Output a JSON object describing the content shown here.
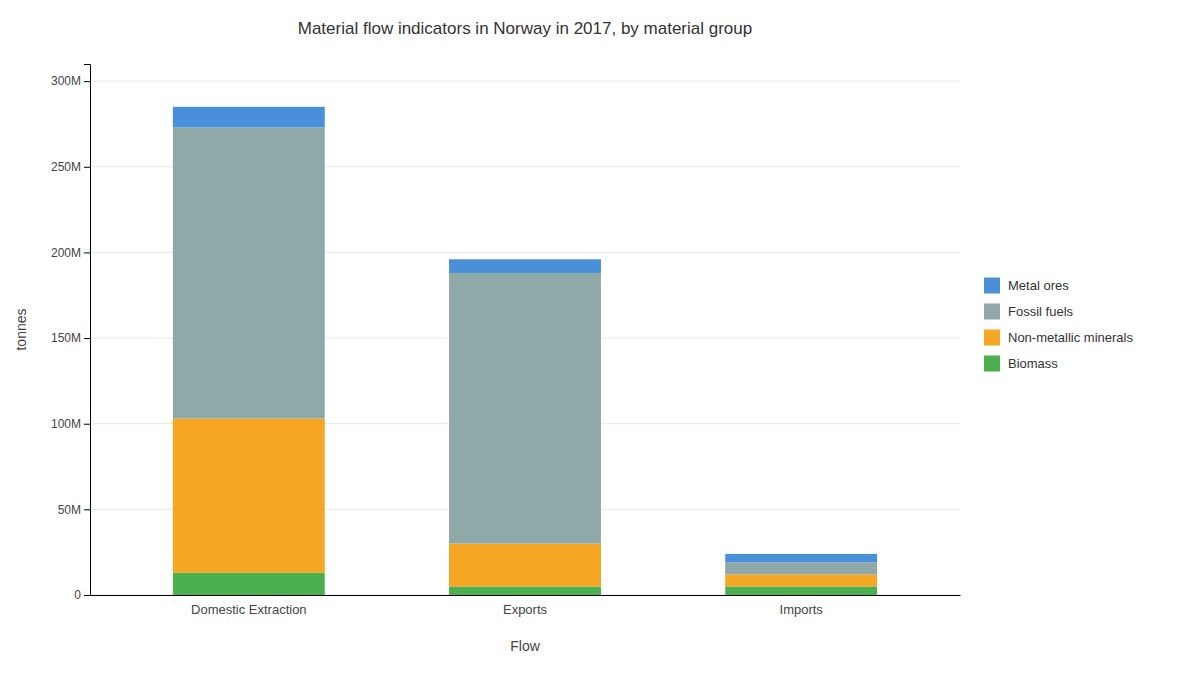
{
  "chart_data": {
    "type": "bar",
    "title": "Material flow indicators in Norway in 2017, by material group",
    "categories": [
      "Domestic Extraction",
      "Exports",
      "Imports"
    ],
    "xlabel": "Flow",
    "ylabel": "tonnes",
    "stacked": true,
    "series": [
      {
        "name": "Biomass",
        "color": "#4caf50",
        "values": [
          13000000,
          5000000,
          5000000
        ]
      },
      {
        "name": "Non-metallic minerals",
        "color": "#f5a623",
        "values": [
          90000000,
          25000000,
          7000000
        ]
      },
      {
        "name": "Fossil fuels",
        "color": "#8fa8a8",
        "values": [
          170000000,
          158000000,
          7000000
        ]
      },
      {
        "name": "Metal ores",
        "color": "#4a90d9",
        "values": [
          12000000,
          8000000,
          5000000
        ]
      }
    ],
    "ylim": [
      0,
      310000000
    ],
    "yticks": [
      0,
      {
        "value": 50000000,
        "label": "50M"
      },
      {
        "value": 100000000,
        "label": "100M"
      },
      {
        "value": 150000000,
        "label": "150M"
      },
      {
        "value": 200000000,
        "label": "200M"
      },
      {
        "value": 250000000,
        "label": "250M"
      },
      {
        "value": 300000000,
        "label": "300M"
      }
    ],
    "grid": true,
    "legend": "right"
  }
}
